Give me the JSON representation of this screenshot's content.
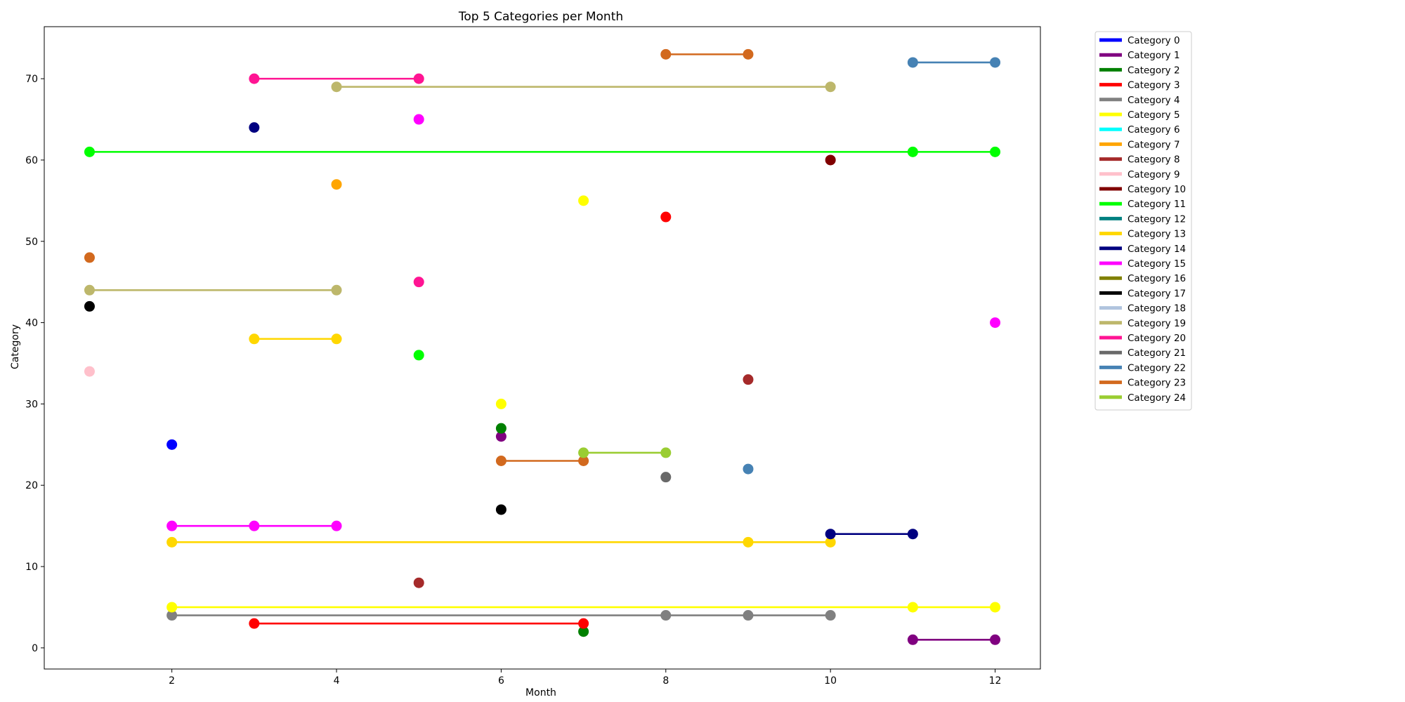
{
  "chart_data": {
    "type": "scatter",
    "title": "Top 5 Categories per Month",
    "xlabel": "Month",
    "ylabel": "Category",
    "xlim": [
      0.45,
      12.55
    ],
    "ylim": [
      -2.6,
      76.4
    ],
    "xticks": [
      2,
      4,
      6,
      8,
      10,
      12
    ],
    "yticks": [
      0,
      10,
      20,
      30,
      40,
      50,
      60,
      70
    ],
    "grid": false,
    "legend_position": "outside-right",
    "series": [
      {
        "name": "Category 0",
        "color": "#0000ff",
        "points": [
          [
            2,
            25
          ]
        ]
      },
      {
        "name": "Category 1",
        "color": "#800080",
        "points": [
          [
            6,
            26
          ],
          [
            11,
            1
          ],
          [
            12,
            1
          ]
        ]
      },
      {
        "name": "Category 2",
        "color": "#008000",
        "points": [
          [
            6,
            27
          ],
          [
            7,
            2
          ]
        ]
      },
      {
        "name": "Category 3",
        "color": "#ff0000",
        "points": [
          [
            3,
            3
          ],
          [
            7,
            3
          ],
          [
            8,
            53
          ]
        ]
      },
      {
        "name": "Category 4",
        "color": "#808080",
        "points": [
          [
            2,
            4
          ],
          [
            8,
            4
          ],
          [
            9,
            4
          ],
          [
            10,
            4
          ]
        ]
      },
      {
        "name": "Category 5",
        "color": "#ffff00",
        "points": [
          [
            2,
            5
          ],
          [
            6,
            30
          ],
          [
            7,
            55
          ],
          [
            11,
            5
          ],
          [
            12,
            5
          ]
        ]
      },
      {
        "name": "Category 6",
        "color": "#00ffff",
        "points": []
      },
      {
        "name": "Category 7",
        "color": "#ffa500",
        "points": [
          [
            4,
            57
          ]
        ]
      },
      {
        "name": "Category 8",
        "color": "#a52a2a",
        "points": [
          [
            5,
            8
          ],
          [
            9,
            33
          ]
        ]
      },
      {
        "name": "Category 9",
        "color": "#ffc0cb",
        "points": [
          [
            1,
            34
          ]
        ]
      },
      {
        "name": "Category 10",
        "color": "#800000",
        "points": [
          [
            10,
            60
          ]
        ]
      },
      {
        "name": "Category 11",
        "color": "#00ff00",
        "points": [
          [
            1,
            61
          ],
          [
            5,
            36
          ],
          [
            11,
            61
          ],
          [
            12,
            61
          ]
        ]
      },
      {
        "name": "Category 12",
        "color": "#008080",
        "points": []
      },
      {
        "name": "Category 13",
        "color": "#ffd700",
        "points": [
          [
            2,
            13
          ],
          [
            3,
            38
          ],
          [
            4,
            38
          ],
          [
            9,
            13
          ],
          [
            10,
            13
          ]
        ]
      },
      {
        "name": "Category 14",
        "color": "#000080",
        "points": [
          [
            3,
            64
          ],
          [
            10,
            14
          ],
          [
            11,
            14
          ]
        ]
      },
      {
        "name": "Category 15",
        "color": "#ff00ff",
        "points": [
          [
            2,
            15
          ],
          [
            3,
            15
          ],
          [
            4,
            15
          ],
          [
            5,
            65
          ],
          [
            12,
            40
          ]
        ]
      },
      {
        "name": "Category 16",
        "color": "#808000",
        "points": []
      },
      {
        "name": "Category 17",
        "color": "#000000",
        "points": [
          [
            1,
            42
          ],
          [
            6,
            17
          ]
        ]
      },
      {
        "name": "Category 18",
        "color": "#b0c4de",
        "points": []
      },
      {
        "name": "Category 19",
        "color": "#bdb76b",
        "points": [
          [
            1,
            44
          ],
          [
            4,
            44
          ],
          [
            4,
            69
          ],
          [
            10,
            69
          ]
        ]
      },
      {
        "name": "Category 20",
        "color": "#ff1493",
        "points": [
          [
            3,
            70
          ],
          [
            5,
            70
          ],
          [
            5,
            45
          ]
        ]
      },
      {
        "name": "Category 21",
        "color": "#696969",
        "points": [
          [
            8,
            21
          ]
        ]
      },
      {
        "name": "Category 22",
        "color": "#4682b4",
        "points": [
          [
            9,
            22
          ],
          [
            11,
            72
          ],
          [
            12,
            72
          ]
        ]
      },
      {
        "name": "Category 23",
        "color": "#d2691e",
        "points": [
          [
            1,
            48
          ],
          [
            6,
            23
          ],
          [
            7,
            23
          ],
          [
            8,
            73
          ],
          [
            9,
            73
          ]
        ]
      },
      {
        "name": "Category 24",
        "color": "#9acd32",
        "points": [
          [
            7,
            24
          ],
          [
            8,
            24
          ]
        ]
      }
    ],
    "segments": [
      {
        "series": 1,
        "x": [
          11,
          12
        ],
        "y": 1
      },
      {
        "series": 3,
        "x": [
          3,
          7
        ],
        "y": 3
      },
      {
        "series": 4,
        "x": [
          2,
          10
        ],
        "y": 4
      },
      {
        "series": 5,
        "x": [
          2,
          12
        ],
        "y": 5
      },
      {
        "series": 11,
        "x": [
          1,
          12
        ],
        "y": 61
      },
      {
        "series": 13,
        "x": [
          2,
          10
        ],
        "y": 13
      },
      {
        "series": 13,
        "x": [
          3,
          4
        ],
        "y": 38
      },
      {
        "series": 14,
        "x": [
          10,
          11
        ],
        "y": 14
      },
      {
        "series": 15,
        "x": [
          2,
          4
        ],
        "y": 15
      },
      {
        "series": 19,
        "x": [
          1,
          4
        ],
        "y": 44
      },
      {
        "series": 19,
        "x": [
          4,
          10
        ],
        "y": 69
      },
      {
        "series": 20,
        "x": [
          3,
          5
        ],
        "y": 70
      },
      {
        "series": 22,
        "x": [
          11,
          12
        ],
        "y": 72
      },
      {
        "series": 23,
        "x": [
          6,
          7
        ],
        "y": 23
      },
      {
        "series": 23,
        "x": [
          8,
          9
        ],
        "y": 73
      },
      {
        "series": 24,
        "x": [
          7,
          8
        ],
        "y": 24
      }
    ]
  }
}
